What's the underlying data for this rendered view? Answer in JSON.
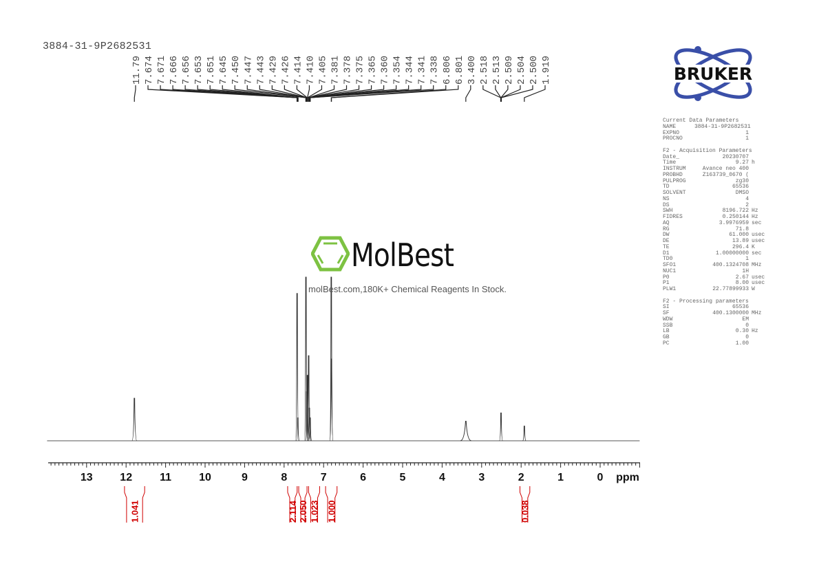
{
  "title": "3884-31-9P2682531",
  "watermark": {
    "brand": "MolBest",
    "tagline": "molBest.com,180K+ Chemical Reagents In Stock.",
    "color": "#7dc242"
  },
  "logo": {
    "text": "BRUKER",
    "ring_color": "#3a4fa8"
  },
  "parameters": [
    {
      "title": "Current Data Parameters",
      "rows": [
        [
          "NAME",
          "3884-31-9P2682531",
          ""
        ],
        [
          "EXPNO",
          "1",
          ""
        ],
        [
          "PROCNO",
          "1",
          ""
        ]
      ]
    },
    {
      "title": "F2 - Acquisition Parameters",
      "rows": [
        [
          "Date_",
          "20230707",
          ""
        ],
        [
          "Time",
          "9.27",
          "h"
        ],
        [
          "INSTRUM",
          "Avance neo 400",
          ""
        ],
        [
          "PROBHD",
          "Z163739_0670 (",
          ""
        ],
        [
          "PULPROG",
          "zg30",
          ""
        ],
        [
          "TD",
          "65536",
          ""
        ],
        [
          "SOLVENT",
          "DMSO",
          ""
        ],
        [
          "NS",
          "4",
          ""
        ],
        [
          "DS",
          "2",
          ""
        ],
        [
          "SWH",
          "8196.722",
          "Hz"
        ],
        [
          "FIDRES",
          "0.250144",
          "Hz"
        ],
        [
          "AQ",
          "3.9976959",
          "sec"
        ],
        [
          "RG",
          "71.8",
          ""
        ],
        [
          "DW",
          "61.000",
          "usec"
        ],
        [
          "DE",
          "13.89",
          "usec"
        ],
        [
          "TE",
          "296.4",
          "K"
        ],
        [
          "D1",
          "1.00000000",
          "sec"
        ],
        [
          "TD0",
          "1",
          ""
        ],
        [
          "SFO1",
          "400.1324708",
          "MHz"
        ],
        [
          "NUC1",
          "1H",
          ""
        ],
        [
          "P0",
          "2.67",
          "usec"
        ],
        [
          "P1",
          "8.00",
          "usec"
        ],
        [
          "PLW1",
          "22.77899933",
          "W"
        ]
      ]
    },
    {
      "title": "F2 - Processing parameters",
      "rows": [
        [
          "SI",
          "65536",
          ""
        ],
        [
          "SF",
          "400.1300000",
          "MHz"
        ],
        [
          "WDW",
          "EM",
          ""
        ],
        [
          "SSB",
          "0",
          ""
        ],
        [
          "LB",
          "0.30",
          "Hz"
        ],
        [
          "GB",
          "0",
          ""
        ],
        [
          "PC",
          "1.00",
          ""
        ]
      ]
    }
  ],
  "chart_data": {
    "type": "line",
    "xlabel": "ppm",
    "xlim": [
      14,
      -1
    ],
    "x_ticks": [
      "13",
      "12",
      "11",
      "10",
      "9",
      "8",
      "7",
      "6",
      "5",
      "4",
      "3",
      "2",
      "1",
      "0"
    ],
    "grid": false,
    "line_color": "#333333",
    "integral_color": "#d00000",
    "peak_labels": [
      "11.79",
      "7.674",
      "7.671",
      "7.666",
      "7.656",
      "7.653",
      "7.651",
      "7.645",
      "7.450",
      "7.447",
      "7.443",
      "7.429",
      "7.426",
      "7.414",
      "7.410",
      "7.405",
      "7.381",
      "7.378",
      "7.375",
      "7.365",
      "7.360",
      "7.354",
      "7.344",
      "7.341",
      "7.338",
      "6.806",
      "6.801",
      "3.400",
      "2.518",
      "2.513",
      "2.509",
      "2.504",
      "2.500",
      "1.919"
    ],
    "peaks": [
      {
        "ppm": 11.79,
        "intensity": 26,
        "width": 0.03
      },
      {
        "ppm": 7.671,
        "intensity": 90,
        "width": 0.01
      },
      {
        "ppm": 7.653,
        "intensity": 14,
        "width": 0.01
      },
      {
        "ppm": 7.447,
        "intensity": 100,
        "width": 0.01
      },
      {
        "ppm": 7.427,
        "intensity": 30,
        "width": 0.01
      },
      {
        "ppm": 7.41,
        "intensity": 40,
        "width": 0.01
      },
      {
        "ppm": 7.378,
        "intensity": 52,
        "width": 0.01
      },
      {
        "ppm": 7.36,
        "intensity": 20,
        "width": 0.01
      },
      {
        "ppm": 7.341,
        "intensity": 14,
        "width": 0.01
      },
      {
        "ppm": 6.806,
        "intensity": 100,
        "width": 0.01
      },
      {
        "ppm": 6.801,
        "intensity": 50,
        "width": 0.01
      },
      {
        "ppm": 3.4,
        "intensity": 12,
        "width": 0.07
      },
      {
        "ppm": 2.509,
        "intensity": 17,
        "width": 0.02
      },
      {
        "ppm": 1.919,
        "intensity": 9,
        "width": 0.015
      }
    ],
    "integrals": [
      {
        "from": 12.04,
        "to": 11.53,
        "value": "1.041"
      },
      {
        "from": 7.91,
        "to": 7.67,
        "value": "2.114"
      },
      {
        "from": 7.63,
        "to": 7.42,
        "value": "2.050"
      },
      {
        "from": 7.38,
        "to": 7.1,
        "value": "1.023"
      },
      {
        "from": 6.95,
        "to": 6.66,
        "value": "1.000"
      },
      {
        "from": 2.03,
        "to": 1.78,
        "value": "0.038"
      }
    ]
  }
}
